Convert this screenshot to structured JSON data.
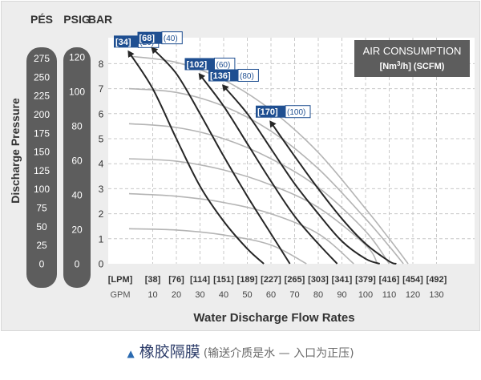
{
  "chart_data": {
    "type": "line",
    "unit_headers": [
      "PÉS",
      "PSIG",
      "BAR"
    ],
    "ylabel": "Discharge Pressure",
    "xlabel": "Water Discharge Flow Rates",
    "legend_title": "AIR CONSUMPTION",
    "legend_unit_prefix": "[Nm",
    "legend_unit_sup": "3",
    "legend_unit_suffix": "/h] (SCFM)",
    "x_unit_labels": [
      "[LPM]",
      "GPM"
    ],
    "bar_ticks": [
      "0",
      "1",
      "2",
      "3",
      "4",
      "5",
      "6",
      "7",
      "8"
    ],
    "psig_ticks": [
      "0",
      "20",
      "40",
      "60",
      "80",
      "100",
      "120"
    ],
    "pes_ticks": [
      "0",
      "25",
      "50",
      "75",
      "100",
      "125",
      "150",
      "175",
      "200",
      "225",
      "250",
      "275"
    ],
    "lpm_ticks": [
      "[38]",
      "[76]",
      "[114]",
      "[151]",
      "[189]",
      "[227]",
      "[265]",
      "[303]",
      "[341]",
      "[379]",
      "[416]",
      "[454]",
      "[492]"
    ],
    "gpm_ticks": [
      "10",
      "20",
      "30",
      "40",
      "50",
      "60",
      "70",
      "80",
      "90",
      "100",
      "110",
      "120",
      "130"
    ],
    "ylim_bar": [
      0,
      8.5
    ],
    "xlim_gpm": [
      0,
      130
    ],
    "grid": true,
    "legend_position": "top-right",
    "series": [
      {
        "name_nm": "[34]",
        "name_scfm": "(20)",
        "x": [
          0,
          10,
          20,
          30,
          40,
          50,
          57
        ],
        "y": [
          8.45,
          7.0,
          5.0,
          3.1,
          1.7,
          0.6,
          0
        ]
      },
      {
        "name_nm": "[68]",
        "name_scfm": "(40)",
        "x": [
          10,
          20,
          30,
          40,
          50,
          60,
          68
        ],
        "y": [
          8.6,
          7.6,
          6.0,
          4.3,
          2.7,
          1.2,
          0
        ]
      },
      {
        "name_nm": "[102]",
        "name_scfm": "(60)",
        "x": [
          30,
          40,
          50,
          60,
          70,
          80,
          88
        ],
        "y": [
          7.55,
          6.3,
          4.8,
          3.3,
          1.9,
          0.8,
          0
        ]
      },
      {
        "name_nm": "[136]",
        "name_scfm": "(80)",
        "x": [
          40,
          50,
          60,
          70,
          80,
          90,
          100,
          106
        ],
        "y": [
          7.1,
          6.0,
          4.6,
          3.2,
          2.0,
          0.9,
          0.2,
          0
        ]
      },
      {
        "name_nm": "[170]",
        "name_scfm": "(100)",
        "x": [
          60,
          70,
          80,
          90,
          100,
          110,
          113
        ],
        "y": [
          5.65,
          4.3,
          3.0,
          1.8,
          0.8,
          0.1,
          0
        ]
      }
    ],
    "pressure_curves": [
      {
        "x": [
          0,
          20,
          40,
          60,
          80,
          100,
          110,
          118
        ],
        "y": [
          8.3,
          8.05,
          7.35,
          6.15,
          4.45,
          2.2,
          1.0,
          0
        ]
      },
      {
        "x": [
          0,
          20,
          40,
          60,
          80,
          100,
          110,
          116
        ],
        "y": [
          7.0,
          6.85,
          6.3,
          5.3,
          3.8,
          1.8,
          0.7,
          0
        ]
      },
      {
        "x": [
          0,
          20,
          40,
          60,
          80,
          100,
          110
        ],
        "y": [
          5.6,
          5.45,
          5.0,
          4.2,
          3.05,
          1.3,
          0
        ]
      },
      {
        "x": [
          0,
          20,
          40,
          60,
          80,
          100,
          105
        ],
        "y": [
          4.2,
          4.1,
          3.75,
          3.15,
          2.25,
          0.75,
          0
        ]
      },
      {
        "x": [
          0,
          20,
          40,
          60,
          80,
          95
        ],
        "y": [
          2.8,
          2.7,
          2.45,
          2.0,
          1.2,
          0
        ]
      },
      {
        "x": [
          0,
          20,
          40,
          60,
          75
        ],
        "y": [
          1.4,
          1.35,
          1.15,
          0.75,
          0
        ]
      }
    ]
  },
  "caption": {
    "main": "橡胶隔膜",
    "note": "(输送介质是水 — 入口为正压)"
  }
}
